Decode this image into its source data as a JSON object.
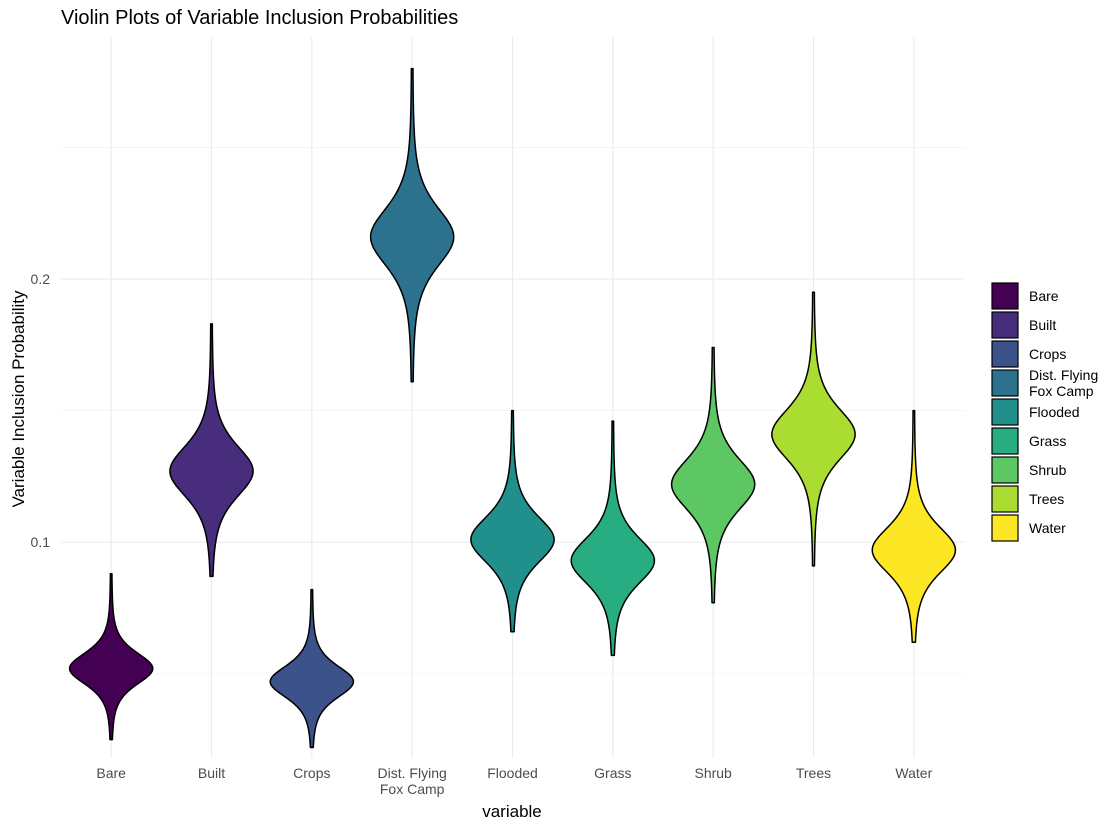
{
  "chart_data": {
    "type": "violin",
    "title": "Violin Plots of Variable Inclusion Probabilities",
    "xlabel": "variable",
    "ylabel": "Variable Inclusion Probability",
    "ylim": [
      0.018,
      0.292
    ],
    "y_ticks": [
      0.1,
      0.2
    ],
    "y_tick_labels": [
      "0.1",
      "0.2"
    ],
    "grid": true,
    "legend_position": "right",
    "categories": [
      {
        "name": "Bare",
        "label_lines": [
          "Bare"
        ],
        "color": "#440154",
        "min": 0.025,
        "max": 0.088,
        "center": 0.052,
        "spread": 0.0065
      },
      {
        "name": "Built",
        "label_lines": [
          "Built"
        ],
        "color": "#472D7B",
        "min": 0.087,
        "max": 0.183,
        "center": 0.127,
        "spread": 0.0105
      },
      {
        "name": "Crops",
        "label_lines": [
          "Crops"
        ],
        "color": "#3B528B",
        "min": 0.022,
        "max": 0.082,
        "center": 0.047,
        "spread": 0.0065
      },
      {
        "name": "Dist. Flying Fox Camp",
        "label_lines": [
          "Dist. Flying",
          "Fox Camp"
        ],
        "color": "#2C728E",
        "min": 0.161,
        "max": 0.28,
        "center": 0.216,
        "spread": 0.012
      },
      {
        "name": "Flooded",
        "label_lines": [
          "Flooded"
        ],
        "color": "#21908C",
        "min": 0.066,
        "max": 0.15,
        "center": 0.101,
        "spread": 0.0095
      },
      {
        "name": "Grass",
        "label_lines": [
          "Grass"
        ],
        "color": "#27AD81",
        "min": 0.057,
        "max": 0.146,
        "center": 0.093,
        "spread": 0.0095
      },
      {
        "name": "Shrub",
        "label_lines": [
          "Shrub"
        ],
        "color": "#5DC863",
        "min": 0.077,
        "max": 0.174,
        "center": 0.122,
        "spread": 0.0105
      },
      {
        "name": "Trees",
        "label_lines": [
          "Trees"
        ],
        "color": "#AADC32",
        "min": 0.091,
        "max": 0.195,
        "center": 0.141,
        "spread": 0.0105
      },
      {
        "name": "Water",
        "label_lines": [
          "Water"
        ],
        "color": "#FDE725",
        "min": 0.062,
        "max": 0.15,
        "center": 0.097,
        "spread": 0.0095
      }
    ]
  }
}
